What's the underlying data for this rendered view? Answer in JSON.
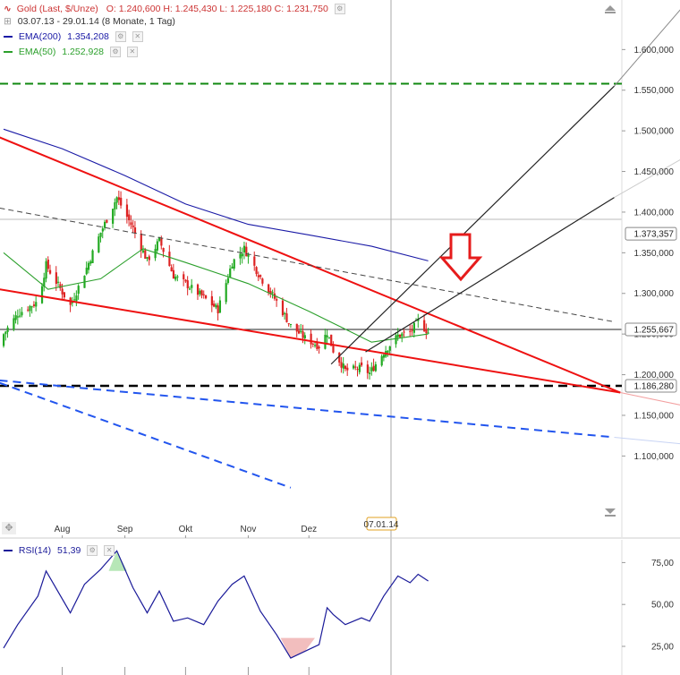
{
  "header": {
    "instrument": "Gold (Last, $/Unze)",
    "ohlc": "O: 1.240,600  H: 1.245,430  L: 1.225,180  C: 1.231,750",
    "range": "03.07.13 - 29.01.14 (8 Monate, 1 Tag)",
    "ema200_label": "EMA(200)",
    "ema200_value": "1.354,208",
    "ema50_label": "EMA(50)",
    "ema50_value": "1.252,928",
    "rsi_label": "RSI(14)",
    "rsi_value": "51,39",
    "cursor_date": "07.01.14"
  },
  "colors": {
    "up": "#22aa22",
    "down": "#dd2222",
    "ema200": "#1a1aa6",
    "ema50": "#2ca02c",
    "trend_red": "#ee1111",
    "blue_dash": "#2255ee",
    "green_dash": "#118811",
    "rsi": "#1a1a99"
  },
  "chart_data": [
    {
      "type": "candlestick",
      "title": "Gold (Last, $/Unze)",
      "ylim": [
        1050,
        1650
      ],
      "y_ticks": [
        "1.100,000",
        "1.150,000",
        "1.200,000",
        "1.250,000",
        "1.300,000",
        "1.350,000",
        "1.400,000",
        "1.450,000",
        "1.500,000",
        "1.550,000",
        "1.600,000"
      ],
      "x_ticks": [
        "Aug",
        "Sep",
        "Okt",
        "Nov",
        "Dez"
      ],
      "price_labels": [
        "1.373,357",
        "1.255,667",
        "1.186,280"
      ],
      "levels": {
        "green_dashed": 1558,
        "black_dashed": 1186.28,
        "horizontal_1": 1373.357,
        "horizontal_2": 1255.667
      },
      "ohlc_keypoints": [
        {
          "d": "Jul 03",
          "c": 1250
        },
        {
          "d": "Jul 10",
          "c": 1275
        },
        {
          "d": "Jul 20",
          "c": 1290
        },
        {
          "d": "Jul 24",
          "c": 1335
        },
        {
          "d": "Aug 05",
          "c": 1285
        },
        {
          "d": "Aug 12",
          "c": 1325
        },
        {
          "d": "Aug 20",
          "c": 1375
        },
        {
          "d": "Aug 28",
          "c": 1418
        },
        {
          "d": "Sep 05",
          "c": 1380
        },
        {
          "d": "Sep 12",
          "c": 1340
        },
        {
          "d": "Sep 18",
          "c": 1365
        },
        {
          "d": "Sep 25",
          "c": 1322
        },
        {
          "d": "Oct 02",
          "c": 1310
        },
        {
          "d": "Oct 10",
          "c": 1295
        },
        {
          "d": "Oct 17",
          "c": 1280
        },
        {
          "d": "Oct 24",
          "c": 1338
        },
        {
          "d": "Oct 30",
          "c": 1355
        },
        {
          "d": "Nov 07",
          "c": 1320
        },
        {
          "d": "Nov 15",
          "c": 1290
        },
        {
          "d": "Nov 22",
          "c": 1260
        },
        {
          "d": "Nov 29",
          "c": 1245
        },
        {
          "d": "Dec 06",
          "c": 1235
        },
        {
          "d": "Dec 10",
          "c": 1252
        },
        {
          "d": "Dec 13",
          "c": 1230
        },
        {
          "d": "Dec 19",
          "c": 1205
        },
        {
          "d": "Dec 27",
          "c": 1208
        },
        {
          "d": "Dec 31",
          "c": 1202
        },
        {
          "d": "Jan 07",
          "c": 1228
        },
        {
          "d": "Jan 14",
          "c": 1248
        },
        {
          "d": "Jan 20",
          "c": 1252
        },
        {
          "d": "Jan 24",
          "c": 1266
        },
        {
          "d": "Jan 29",
          "c": 1252
        }
      ],
      "ema200": [
        [
          "Jul 03",
          1502
        ],
        [
          "Aug 01",
          1478
        ],
        [
          "Sep 01",
          1445
        ],
        [
          "Oct 01",
          1410
        ],
        [
          "Nov 01",
          1385
        ],
        [
          "Dec 01",
          1372
        ],
        [
          "Jan 01",
          1358
        ],
        [
          "Jan 29",
          1340
        ]
      ],
      "ema50": [
        [
          "Jul 03",
          1350
        ],
        [
          "Jul 25",
          1305
        ],
        [
          "Aug 20",
          1318
        ],
        [
          "Sep 10",
          1355
        ],
        [
          "Oct 01",
          1338
        ],
        [
          "Nov 01",
          1312
        ],
        [
          "Dec 01",
          1278
        ],
        [
          "Jan 01",
          1240
        ],
        [
          "Jan 29",
          1250
        ]
      ]
    },
    {
      "type": "line",
      "title": "RSI(14)",
      "ylim": [
        15,
        90
      ],
      "y_ticks": [
        "25,00",
        "50,00",
        "75,00"
      ],
      "values": [
        [
          "Jul 03",
          24
        ],
        [
          "Jul 10",
          38
        ],
        [
          "Jul 20",
          55
        ],
        [
          "Jul 24",
          70
        ],
        [
          "Aug 05",
          45
        ],
        [
          "Aug 12",
          62
        ],
        [
          "Aug 20",
          71
        ],
        [
          "Aug 28",
          82
        ],
        [
          "Sep 05",
          60
        ],
        [
          "Sep 12",
          45
        ],
        [
          "Sep 18",
          58
        ],
        [
          "Sep 25",
          40
        ],
        [
          "Oct 02",
          42
        ],
        [
          "Oct 10",
          38
        ],
        [
          "Oct 17",
          52
        ],
        [
          "Oct 24",
          62
        ],
        [
          "Oct 30",
          67
        ],
        [
          "Nov 07",
          46
        ],
        [
          "Nov 15",
          32
        ],
        [
          "Nov 22",
          18
        ],
        [
          "Nov 29",
          22
        ],
        [
          "Dec 06",
          26
        ],
        [
          "Dec 10",
          48
        ],
        [
          "Dec 13",
          44
        ],
        [
          "Dec 19",
          38
        ],
        [
          "Dec 27",
          42
        ],
        [
          "Dec 31",
          40
        ],
        [
          "Jan 07",
          55
        ],
        [
          "Jan 14",
          67
        ],
        [
          "Jan 20",
          63
        ],
        [
          "Jan 24",
          68
        ],
        [
          "Jan 29",
          64
        ]
      ]
    }
  ]
}
